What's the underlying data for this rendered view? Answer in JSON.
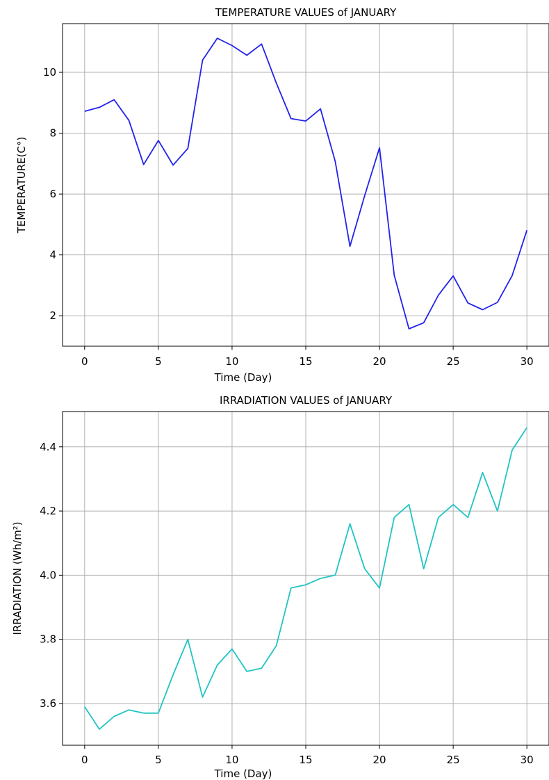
{
  "chart_data": [
    {
      "type": "line",
      "title": "TEMPERATURE VALUES of JANUARY",
      "xlabel": "Time (Day)",
      "ylabel": "TEMPERATURE(C°)",
      "x": [
        0,
        1,
        2,
        3,
        4,
        5,
        6,
        7,
        8,
        9,
        10,
        11,
        12,
        13,
        14,
        15,
        16,
        17,
        18,
        19,
        20,
        21,
        22,
        23,
        24,
        25,
        26,
        27,
        28,
        29,
        30
      ],
      "series": [
        {
          "color": "#2222ee",
          "values": [
            8.72,
            8.85,
            9.1,
            8.42,
            6.97,
            7.76,
            6.95,
            7.5,
            10.4,
            11.12,
            10.88,
            10.56,
            10.93,
            9.65,
            8.48,
            8.4,
            8.8,
            7.07,
            4.28,
            5.95,
            7.52,
            3.33,
            1.57,
            1.77,
            2.68,
            3.31,
            2.42,
            2.2,
            2.44,
            3.32,
            4.81
          ]
        }
      ],
      "xlim": [
        -1.5,
        31.5
      ],
      "ylim": [
        1.0,
        11.6
      ],
      "xticks": [
        0,
        5,
        10,
        15,
        20,
        25,
        30
      ],
      "yticks": [
        2,
        4,
        6,
        8,
        10
      ],
      "grid": true
    },
    {
      "type": "line",
      "title": "IRRADIATION VALUES of JANUARY",
      "xlabel": "Time (Day)",
      "ylabel": "IRRADIATION (Wh/m²)",
      "x": [
        0,
        1,
        2,
        3,
        4,
        5,
        6,
        7,
        8,
        9,
        10,
        11,
        12,
        13,
        14,
        15,
        16,
        17,
        18,
        19,
        20,
        21,
        22,
        23,
        24,
        25,
        26,
        27,
        28,
        29,
        30
      ],
      "series": [
        {
          "color": "#20c4c4",
          "values": [
            3.59,
            3.52,
            3.56,
            3.58,
            3.57,
            3.57,
            3.69,
            3.8,
            3.62,
            3.72,
            3.77,
            3.7,
            3.71,
            3.78,
            3.96,
            3.97,
            3.99,
            4.0,
            4.16,
            4.02,
            3.96,
            4.18,
            4.22,
            4.02,
            4.18,
            4.22,
            4.18,
            4.32,
            4.2,
            4.39,
            4.46
          ]
        }
      ],
      "xlim": [
        -1.5,
        31.5
      ],
      "ylim": [
        3.47,
        4.51
      ],
      "xticks": [
        0,
        5,
        10,
        15,
        20,
        25,
        30
      ],
      "yticks": [
        3.6,
        3.8,
        4.0,
        4.2,
        4.4
      ],
      "ytick_labels": [
        "3.6",
        "3.8",
        "4.0",
        "4.2",
        "4.4"
      ],
      "grid": true
    }
  ]
}
